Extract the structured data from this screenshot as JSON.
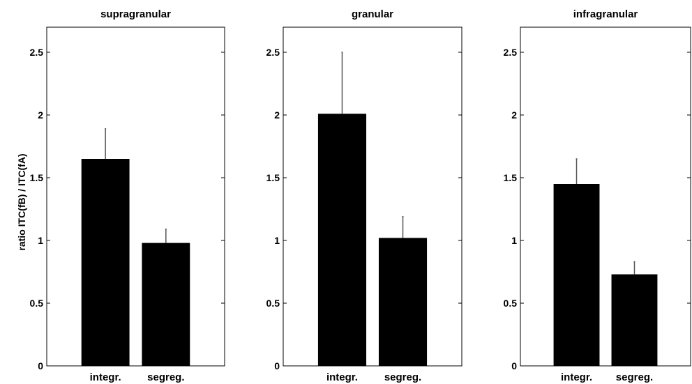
{
  "chart_data": {
    "type": "bar",
    "ylabel": "ratio ITC(fB) / ITC(fA)",
    "ylim": [
      0,
      2.7
    ],
    "yticks": [
      "0",
      "0.5",
      "1",
      "1.5",
      "2",
      "2.5"
    ],
    "ytick_values": [
      0,
      0.5,
      1,
      1.5,
      2,
      2.5
    ],
    "grid": false,
    "bar_color": "#000000",
    "errorbar_color": "#555555",
    "panels": [
      {
        "title": "supragranular",
        "categories": [
          "integr.",
          "segreg."
        ],
        "values": [
          1.65,
          0.98
        ],
        "errors": [
          0.24,
          0.11
        ]
      },
      {
        "title": "granular",
        "categories": [
          "integr.",
          "segreg."
        ],
        "values": [
          2.01,
          1.02
        ],
        "errors": [
          0.49,
          0.17
        ]
      },
      {
        "title": "infragranular",
        "categories": [
          "integr.",
          "segreg."
        ],
        "values": [
          1.45,
          0.73
        ],
        "errors": [
          0.2,
          0.1
        ]
      }
    ]
  }
}
